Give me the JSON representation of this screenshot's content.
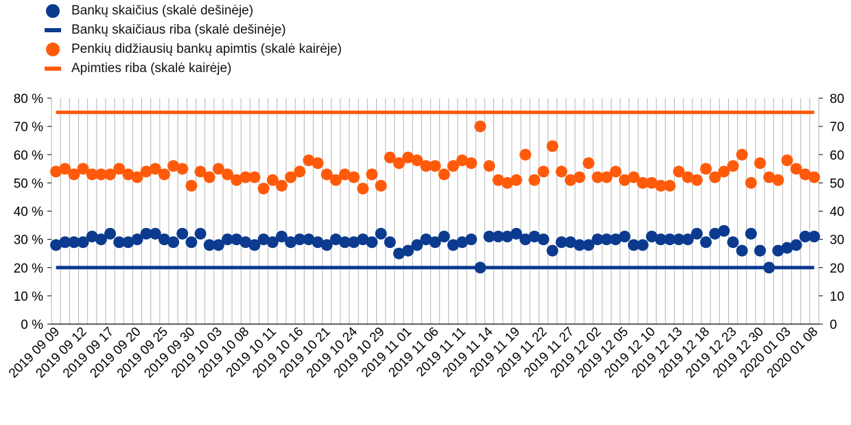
{
  "colors": {
    "banks": "#0b3a8f",
    "coverage": "#ff5a0a",
    "grid": "#b3b3b3",
    "axis": "#000000"
  },
  "legend": [
    {
      "label": "Bankų skaičius (skalė dešinėje)",
      "shape": "dot",
      "color": "#0b3a8f"
    },
    {
      "label": "Bankų skaičiaus riba (skalė dešinėje)",
      "shape": "line",
      "color": "#0b3a8f"
    },
    {
      "label": "Penkių didžiausių bankų apimtis (skalė kairėje)",
      "shape": "dot",
      "color": "#ff5a0a"
    },
    {
      "label": "Apimties riba (skalė kairėje)",
      "shape": "line",
      "color": "#ff5a0a"
    }
  ],
  "chart_data": {
    "type": "scatter",
    "x_tick_labels": [
      "2019 09 09",
      "2019 09 12",
      "2019 09 17",
      "2019 09 20",
      "2019 09 25",
      "2019 09 30",
      "2019 10 03",
      "2019 10 08",
      "2019 10 11",
      "2019 10 16",
      "2019 10 21",
      "2019 10 24",
      "2019 10 29",
      "2019 11 01",
      "2019 11 06",
      "2019 11 11",
      "2019 11 14",
      "2019 11 19",
      "2019 11 22",
      "2019 11 27",
      "2019 12 02",
      "2019 12 05",
      "2019 12 10",
      "2019 12 13",
      "2019 12 18",
      "2019 12 23",
      "2019 12 30",
      "2020 01 03",
      "2020 01 08"
    ],
    "y_left": {
      "min": 0,
      "max": 80,
      "ticks": [
        "0 %",
        "10 %",
        "20 %",
        "30 %",
        "40 %",
        "50 %",
        "60 %",
        "70 %",
        "80 %"
      ]
    },
    "y_right": {
      "min": 0,
      "max": 80,
      "ticks": [
        "0",
        "10",
        "20",
        "30",
        "40",
        "50",
        "60",
        "70",
        "80"
      ]
    },
    "grid": "vertical",
    "series": [
      {
        "name": "Bankų skaičius (skalė dešinėje)",
        "axis": "right",
        "style": "markers",
        "values": [
          28,
          29,
          29,
          29,
          31,
          30,
          32,
          29,
          29,
          30,
          32,
          32,
          30,
          29,
          32,
          29,
          32,
          28,
          28,
          30,
          30,
          29,
          28,
          30,
          29,
          31,
          29,
          30,
          30,
          29,
          28,
          30,
          29,
          29,
          30,
          29,
          32,
          29,
          25,
          26,
          28,
          30,
          29,
          31,
          28,
          29,
          30,
          20,
          31,
          31,
          31,
          32,
          30,
          31,
          30,
          26,
          29,
          29,
          28,
          28,
          30,
          30,
          30,
          31,
          28,
          28,
          31,
          30,
          30,
          30,
          30,
          32,
          29,
          32,
          33,
          29,
          26,
          32,
          26,
          20,
          26,
          27,
          28,
          31,
          31
        ]
      },
      {
        "name": "Bankų skaičiaus riba (skalė dešinėje)",
        "axis": "right",
        "style": "line",
        "value": 20
      },
      {
        "name": "Penkių didžiausių bankų apimtis (skalė kairėje)",
        "axis": "left",
        "style": "markers",
        "values": [
          54,
          55,
          53,
          55,
          53,
          53,
          53,
          55,
          53,
          52,
          54,
          55,
          53,
          56,
          55,
          49,
          54,
          52,
          55,
          53,
          51,
          52,
          52,
          48,
          51,
          49,
          52,
          54,
          58,
          57,
          53,
          51,
          53,
          52,
          48,
          53,
          49,
          59,
          57,
          59,
          58,
          56,
          56,
          53,
          56,
          58,
          57,
          70,
          56,
          51,
          50,
          51,
          60,
          51,
          54,
          63,
          54,
          51,
          52,
          57,
          52,
          52,
          54,
          51,
          52,
          50,
          50,
          49,
          49,
          54,
          52,
          51,
          55,
          52,
          54,
          56,
          60,
          50,
          57,
          52,
          51,
          58,
          55,
          53,
          52
        ]
      },
      {
        "name": "Apimties riba (skalė kairėje)",
        "axis": "left",
        "style": "line",
        "value": 75
      }
    ]
  }
}
